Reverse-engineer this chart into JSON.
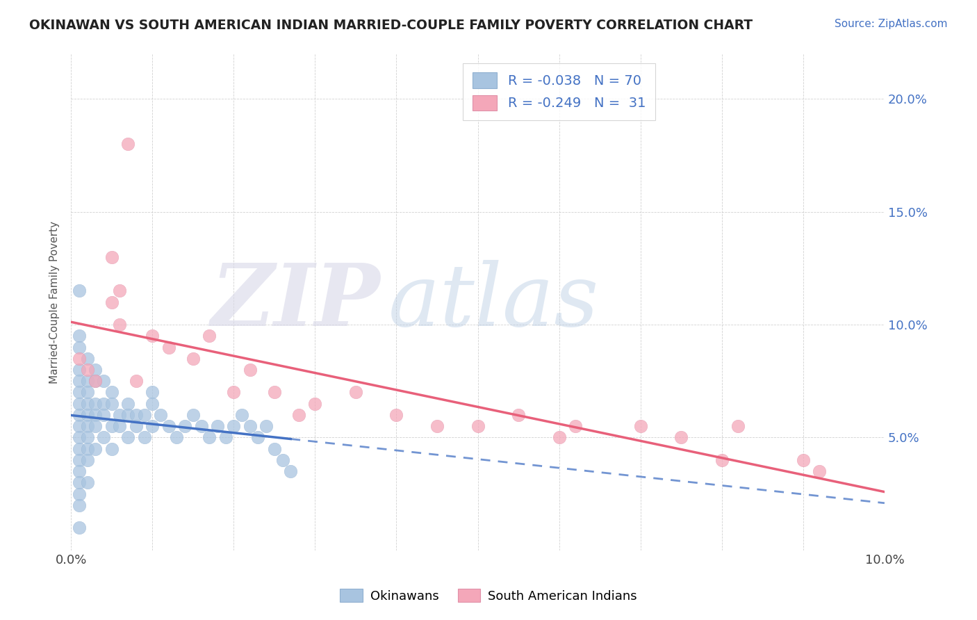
{
  "title": "OKINAWAN VS SOUTH AMERICAN INDIAN MARRIED-COUPLE FAMILY POVERTY CORRELATION CHART",
  "source": "Source: ZipAtlas.com",
  "ylabel": "Married-Couple Family Poverty",
  "xlim": [
    0.0,
    0.1
  ],
  "ylim": [
    0.0,
    0.22
  ],
  "legend_r_okinawan": "-0.038",
  "legend_n_okinawan": "70",
  "legend_r_sai": "-0.249",
  "legend_n_sai": "31",
  "okinawan_color": "#a8c4e0",
  "sai_color": "#f4a7b9",
  "okinawan_line_color": "#4472c4",
  "sai_line_color": "#e8607a",
  "value_color": "#4472c4",
  "ok_x": [
    0.001,
    0.001,
    0.001,
    0.001,
    0.001,
    0.001,
    0.001,
    0.001,
    0.001,
    0.001,
    0.001,
    0.001,
    0.001,
    0.001,
    0.001,
    0.001,
    0.001,
    0.002,
    0.002,
    0.002,
    0.002,
    0.002,
    0.002,
    0.002,
    0.002,
    0.002,
    0.002,
    0.003,
    0.003,
    0.003,
    0.003,
    0.003,
    0.003,
    0.004,
    0.004,
    0.004,
    0.004,
    0.005,
    0.005,
    0.005,
    0.005,
    0.006,
    0.006,
    0.007,
    0.007,
    0.007,
    0.008,
    0.008,
    0.009,
    0.009,
    0.01,
    0.01,
    0.01,
    0.011,
    0.012,
    0.013,
    0.014,
    0.015,
    0.016,
    0.017,
    0.018,
    0.019,
    0.02,
    0.021,
    0.022,
    0.023,
    0.024,
    0.025,
    0.026,
    0.027
  ],
  "ok_y": [
    0.115,
    0.095,
    0.09,
    0.08,
    0.075,
    0.07,
    0.065,
    0.06,
    0.055,
    0.05,
    0.045,
    0.04,
    0.035,
    0.03,
    0.025,
    0.02,
    0.01,
    0.085,
    0.075,
    0.07,
    0.065,
    0.06,
    0.055,
    0.05,
    0.045,
    0.04,
    0.03,
    0.08,
    0.075,
    0.065,
    0.06,
    0.055,
    0.045,
    0.075,
    0.065,
    0.06,
    0.05,
    0.07,
    0.065,
    0.055,
    0.045,
    0.06,
    0.055,
    0.065,
    0.06,
    0.05,
    0.06,
    0.055,
    0.06,
    0.05,
    0.07,
    0.065,
    0.055,
    0.06,
    0.055,
    0.05,
    0.055,
    0.06,
    0.055,
    0.05,
    0.055,
    0.05,
    0.055,
    0.06,
    0.055,
    0.05,
    0.055,
    0.045,
    0.04,
    0.035
  ],
  "sai_x": [
    0.001,
    0.002,
    0.003,
    0.005,
    0.005,
    0.006,
    0.006,
    0.007,
    0.008,
    0.01,
    0.012,
    0.015,
    0.017,
    0.02,
    0.022,
    0.025,
    0.028,
    0.03,
    0.035,
    0.04,
    0.045,
    0.05,
    0.055,
    0.06,
    0.062,
    0.07,
    0.075,
    0.08,
    0.082,
    0.09,
    0.092
  ],
  "sai_y": [
    0.085,
    0.08,
    0.075,
    0.13,
    0.11,
    0.115,
    0.1,
    0.18,
    0.075,
    0.095,
    0.09,
    0.085,
    0.095,
    0.07,
    0.08,
    0.07,
    0.06,
    0.065,
    0.07,
    0.06,
    0.055,
    0.055,
    0.06,
    0.05,
    0.055,
    0.055,
    0.05,
    0.04,
    0.055,
    0.04,
    0.035
  ]
}
